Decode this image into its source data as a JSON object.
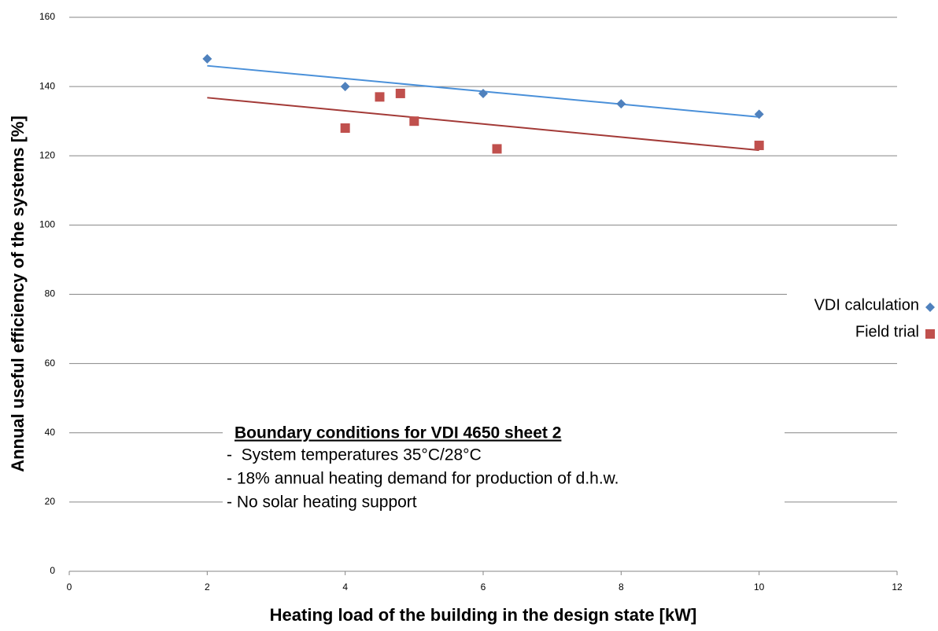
{
  "chart_data": {
    "type": "scatter",
    "x_label": "Heating load of the building in the design state [kW]",
    "y_label": "Annual useful efficiency of the systems [%]",
    "xlim": [
      0,
      12
    ],
    "xticks": [
      0,
      2,
      4,
      6,
      8,
      10,
      12
    ],
    "ylim": [
      0,
      160
    ],
    "yticks": [
      0,
      20,
      40,
      60,
      80,
      100,
      120,
      140,
      160
    ],
    "grid": true,
    "trendline": "linear",
    "legend": "right",
    "series": [
      {
        "name": "VDI calculation",
        "color": "#4f81bd",
        "marker": "diamond",
        "x": [
          2,
          4,
          6,
          8,
          10
        ],
        "values": [
          148,
          140,
          138,
          135,
          132
        ]
      },
      {
        "name": "Field trial",
        "color": "#c0504d",
        "marker": "square",
        "x": [
          4,
          4.5,
          4.8,
          5,
          6.2,
          10
        ],
        "values": [
          128,
          137,
          138,
          130,
          122,
          123
        ]
      }
    ],
    "annotation": {
      "title": "Boundary conditions for VDI 4650 sheet 2",
      "lines": [
        "-  System temperatures 35°C/28°C",
        "- 18% annual heating demand for production of d.h.w.",
        "- No solar heating support"
      ]
    }
  }
}
